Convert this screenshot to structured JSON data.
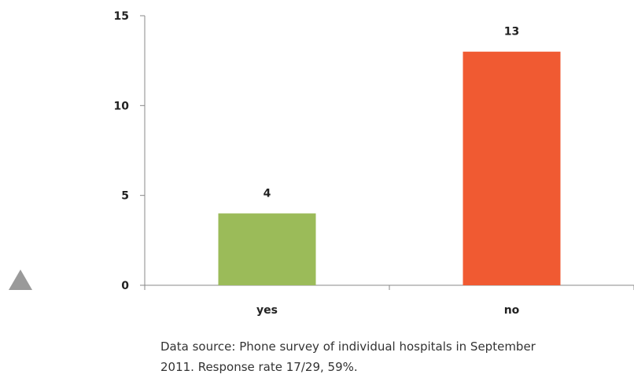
{
  "chart_data": {
    "type": "bar",
    "categories": [
      "yes",
      "no"
    ],
    "values": [
      4,
      13
    ],
    "colors": [
      "#9bbb59",
      "#f05a32"
    ],
    "ylim": [
      0,
      15
    ],
    "yticks": [
      0,
      5,
      10,
      15
    ],
    "data_labels": true,
    "grid": false,
    "legend": "none"
  },
  "caption": {
    "line1": "Data source: Phone survey of individual hospitals in September",
    "line2": "2011. Response rate 17/29, 59%."
  },
  "icons": {
    "expand": "triangle-up-icon"
  }
}
